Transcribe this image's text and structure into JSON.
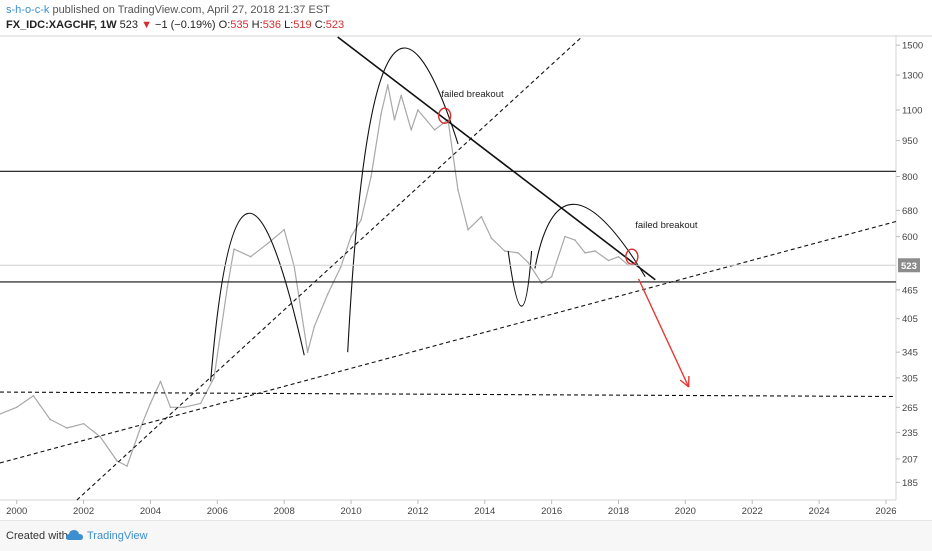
{
  "header": {
    "author": "s-h-o-c-k",
    "published": " published on TradingView.com, April 27, 2018 21:37 EST",
    "symbol": "FX_IDC:XAGCHF, 1W",
    "last": " 523 ",
    "change": " −1 (−0.19%) ",
    "o_label": "O:",
    "o_val": "535",
    "h_label": " H:",
    "h_val": "536",
    "l_label": " L:",
    "l_val": "519",
    "c_label": " C:",
    "c_val": "523"
  },
  "footer": {
    "created": "Created with",
    "brand": "TradingView"
  },
  "colors": {
    "price": "#a8a8a8",
    "lines": "#111111",
    "arrow": "#e53935",
    "circle": "#d32f2f",
    "brand": "#3d8fd1"
  },
  "chart_data": {
    "type": "line",
    "scale": "log",
    "ylim": [
      170,
      1560
    ],
    "xlim": [
      1999.5,
      2026.3
    ],
    "yticks": [
      185,
      207,
      235,
      265,
      305,
      345,
      405,
      465,
      523,
      600,
      680,
      800,
      950,
      1100,
      1300,
      1500
    ],
    "xticks": [
      2000,
      2002,
      2004,
      2006,
      2008,
      2010,
      2012,
      2014,
      2016,
      2018,
      2020,
      2022,
      2024,
      2026
    ],
    "xtick_labels": [
      "2000",
      "2002",
      "2004",
      "2006",
      "2008",
      "2010",
      "2012",
      "2014",
      "2016",
      "2018",
      "2020",
      "2022",
      "2024",
      "2026"
    ],
    "last_price_label": "523",
    "series": [
      {
        "x": [
          1999.4,
          2000.0,
          2000.5,
          2001.0,
          2001.5,
          2002.0,
          2002.5,
          2003.0,
          2003.3,
          2003.7,
          2004.0,
          2004.3,
          2004.6,
          2005.0,
          2005.5,
          2005.9,
          2006.3,
          2006.5,
          2007.0,
          2007.5,
          2008.0,
          2008.3,
          2008.7,
          2008.9,
          2009.3,
          2009.7,
          2010.0,
          2010.3,
          2010.6,
          2010.9,
          2011.1,
          2011.3,
          2011.5,
          2011.8,
          2012.0,
          2012.5,
          2012.9,
          2013.2,
          2013.5,
          2013.9,
          2014.2,
          2014.6,
          2015.0,
          2015.3,
          2015.7,
          2016.0,
          2016.4,
          2016.7,
          2017.0,
          2017.3,
          2017.7,
          2018.0,
          2018.3
        ],
        "y": [
          255,
          265,
          280,
          250,
          240,
          245,
          230,
          205,
          200,
          240,
          270,
          300,
          265,
          265,
          270,
          305,
          470,
          565,
          545,
          580,
          620,
          520,
          345,
          390,
          455,
          520,
          600,
          650,
          800,
          1080,
          1240,
          1050,
          1180,
          1000,
          1100,
          1000,
          1050,
          750,
          620,
          660,
          595,
          560,
          555,
          530,
          480,
          495,
          600,
          590,
          555,
          560,
          535,
          545,
          523
        ]
      }
    ],
    "lines": [
      {
        "kind": "solid",
        "y": 820
      },
      {
        "kind": "solid",
        "y": 483
      },
      {
        "kind": "dashed",
        "x": [
          1999.5,
          2026.3
        ],
        "y": [
          285,
          279
        ]
      },
      {
        "kind": "dashed",
        "x": [
          2001.8,
          2016.9
        ],
        "y": [
          170,
          1560
        ]
      },
      {
        "kind": "dashed",
        "x": [
          1999.5,
          2026.3
        ],
        "y": [
          203,
          645
        ]
      },
      {
        "kind": "solid",
        "x": [
          2009.6,
          2019.1
        ],
        "y": [
          1560,
          488
        ]
      }
    ],
    "annotations": [
      {
        "text": "failed breakout",
        "x": 2012.7,
        "y": 1170
      },
      {
        "text": "failed breakout",
        "x": 2018.5,
        "y": 625
      }
    ],
    "breakout_points": [
      {
        "x": 2012.8,
        "y": 1070
      },
      {
        "x": 2018.4,
        "y": 545
      }
    ],
    "arrow": {
      "x": [
        2018.6,
        2020.1
      ],
      "y": [
        490,
        292
      ]
    },
    "arcs": [
      {
        "x": [
          2005.8,
          2006.9,
          2008.6
        ],
        "y": [
          300,
          670,
          340
        ]
      },
      {
        "x": [
          2009.9,
          2011.1,
          2013.2
        ],
        "y": [
          345,
          1380,
          935
        ]
      },
      {
        "x": [
          2014.7,
          2015.1,
          2015.4
        ],
        "y": [
          560,
          430,
          560
        ]
      },
      {
        "x": [
          2015.5,
          2016.7,
          2018.8
        ],
        "y": [
          515,
          700,
          495
        ]
      }
    ]
  }
}
